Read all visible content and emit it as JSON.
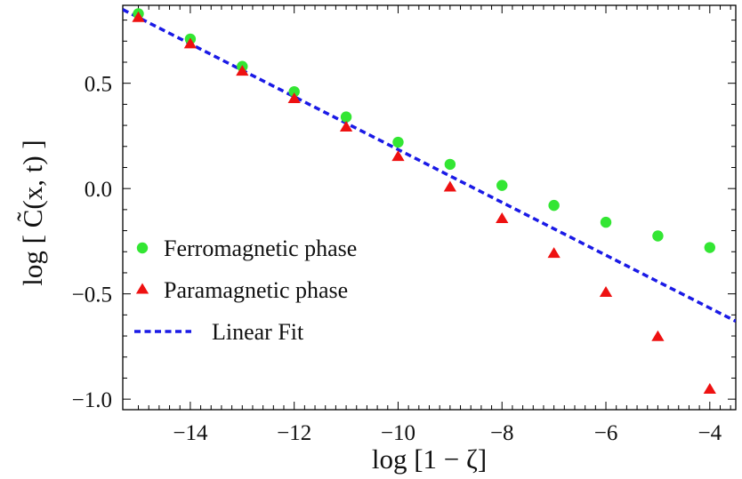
{
  "chart_data": {
    "type": "scatter",
    "title": "",
    "xlabel": "log [1 − ζ]",
    "ylabel": "log [ C̃(x, t) ]",
    "xlim": [
      -15.3,
      -3.5
    ],
    "ylim": [
      -1.05,
      0.87
    ],
    "x_ticks": [
      -14,
      -12,
      -10,
      -8,
      -6,
      -4
    ],
    "x_tick_labels": [
      "−14",
      "−12",
      "−10",
      "−8",
      "−6",
      "−4"
    ],
    "y_ticks": [
      -1.0,
      -0.5,
      0.0,
      0.5
    ],
    "y_tick_labels": [
      "−1.0",
      "−0.5",
      "0.0",
      "0.5"
    ],
    "grid": false,
    "legend_position": "lower-left",
    "series": [
      {
        "name": "Ferromagnetic phase",
        "marker": "circle",
        "color": "#33e633",
        "x": [
          -15,
          -14,
          -13,
          -12,
          -11,
          -10,
          -9,
          -8,
          -7,
          -6,
          -5,
          -4
        ],
        "y": [
          0.83,
          0.71,
          0.58,
          0.46,
          0.34,
          0.22,
          0.115,
          0.015,
          -0.08,
          -0.16,
          -0.225,
          -0.28
        ]
      },
      {
        "name": "Paramagnetic phase",
        "marker": "triangle",
        "color": "#ee1111",
        "x": [
          -15,
          -14,
          -13,
          -12,
          -11,
          -10,
          -9,
          -8,
          -7,
          -6,
          -5,
          -4
        ],
        "y": [
          0.81,
          0.685,
          0.555,
          0.425,
          0.29,
          0.15,
          0.005,
          -0.145,
          -0.31,
          -0.495,
          -0.705,
          -0.955
        ]
      },
      {
        "name": "Linear Fit",
        "marker": "dashed-line",
        "color": "#1a1ae6",
        "x": [
          -15.3,
          -3.5
        ],
        "y": [
          0.85,
          -0.63
        ]
      }
    ]
  }
}
